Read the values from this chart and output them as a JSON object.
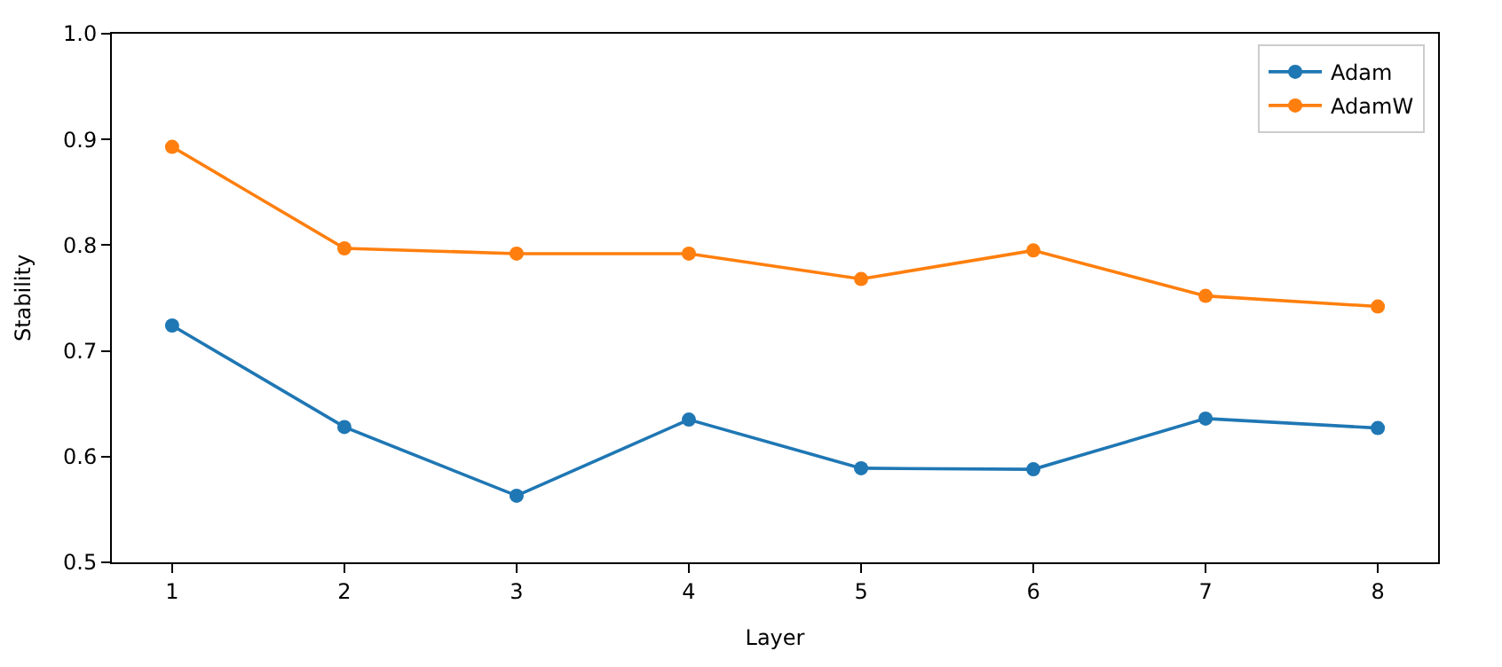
{
  "chart_data": {
    "type": "line",
    "xlabel": "Layer",
    "ylabel": "Stability",
    "x": [
      1,
      2,
      3,
      4,
      5,
      6,
      7,
      8
    ],
    "series": [
      {
        "name": "Adam",
        "color": "#1f77b4",
        "values": [
          0.724,
          0.628,
          0.563,
          0.635,
          0.589,
          0.588,
          0.636,
          0.627
        ]
      },
      {
        "name": "AdamW",
        "color": "#ff7f0e",
        "values": [
          0.893,
          0.797,
          0.792,
          0.792,
          0.768,
          0.795,
          0.752,
          0.742
        ]
      }
    ],
    "xlim": [
      0.65,
      8.35
    ],
    "xticks": [
      1,
      2,
      3,
      4,
      5,
      6,
      7,
      8
    ],
    "ylim": [
      0.5,
      1.0
    ],
    "yticks": [
      {
        "value": 0.5,
        "label": "0.5"
      },
      {
        "value": 0.6,
        "label": "0.6"
      },
      {
        "value": 0.7,
        "label": "0.7"
      },
      {
        "value": 0.8,
        "label": "0.8"
      },
      {
        "value": 0.9,
        "label": "0.9"
      },
      {
        "value": 1.0,
        "label": "1.0"
      }
    ],
    "legend": "top right",
    "marker": "circle",
    "line_style": "solid"
  }
}
